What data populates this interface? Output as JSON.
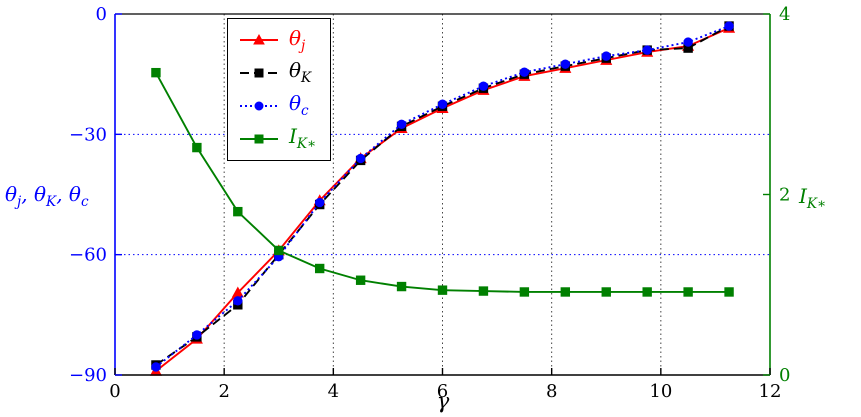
{
  "chart_data": {
    "type": "line",
    "title": "",
    "xlabel": "γ",
    "x_range": [
      0,
      12
    ],
    "x_ticks": [
      0,
      2,
      4,
      6,
      8,
      10,
      12
    ],
    "y_left": {
      "range": [
        -90,
        0
      ],
      "ticks": [
        0,
        -30,
        -60,
        -90
      ],
      "color": "#0000ff",
      "label_parts": [
        {
          "t": "θ",
          "s": "j"
        },
        {
          "t": ", θ",
          "s": "K"
        },
        {
          "t": ", θ",
          "s": "c"
        }
      ]
    },
    "y_right": {
      "range": [
        0,
        4
      ],
      "ticks": [
        4,
        2,
        0
      ],
      "color": "#008000",
      "label_parts": [
        {
          "t": "I",
          "s": "K∗"
        }
      ]
    },
    "grid": {
      "vertical_x": [
        2,
        4,
        6,
        8,
        10
      ],
      "horizontal_left_y": [
        -30,
        -60
      ],
      "vertical_color": "#444444",
      "horizontal_color": "#0000ff"
    },
    "x": [
      0.75,
      1.5,
      2.25,
      3,
      3.75,
      4.5,
      5.25,
      6,
      6.75,
      7.5,
      8.25,
      9,
      9.75,
      10.5,
      11.25
    ],
    "series": [
      {
        "name_base": "θ",
        "name_sub": "j",
        "axis": "left",
        "color": "#ff0000",
        "marker": "triangle",
        "line": "solid",
        "values": [
          -89,
          -81,
          -69.5,
          -59,
          -46.5,
          -36,
          -28.5,
          -23.5,
          -19,
          -15.5,
          -13.5,
          -11.5,
          -9.5,
          -8,
          -3.5
        ]
      },
      {
        "name_base": "θ",
        "name_sub": "K",
        "axis": "left",
        "color": "#000000",
        "marker": "square",
        "line": "dashed",
        "values": [
          -87.5,
          -80.5,
          -72.5,
          -60,
          -47.5,
          -36.5,
          -28,
          -23,
          -18.5,
          -15,
          -13,
          -11,
          -9,
          -8.5,
          -3
        ]
      },
      {
        "name_base": "θ",
        "name_sub": "c",
        "axis": "left",
        "color": "#0000ff",
        "marker": "circle",
        "line": "dotted",
        "values": [
          -88,
          -80,
          -71.5,
          -60.5,
          -47,
          -36,
          -27.5,
          -22.5,
          -18,
          -14.5,
          -12.5,
          -10.5,
          -9,
          -7,
          -3
        ]
      },
      {
        "name_base": "I",
        "name_sub": "K∗",
        "axis": "right",
        "color": "#008000",
        "marker": "square",
        "line": "solid",
        "values": [
          3.35,
          2.52,
          1.81,
          1.38,
          1.18,
          1.05,
          0.98,
          0.94,
          0.93,
          0.92,
          0.92,
          0.92,
          0.92,
          0.92,
          0.92
        ]
      }
    ],
    "legend": {
      "position": "top-left"
    }
  }
}
